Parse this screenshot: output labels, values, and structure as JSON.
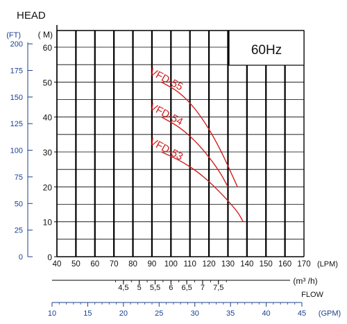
{
  "chart_data": {
    "type": "line",
    "title": "HEAD",
    "legend_box_label": "60Hz",
    "axes": {
      "y_m": {
        "unit": "( M)",
        "ylim": [
          0,
          65
        ],
        "ticks": [
          0,
          10,
          20,
          30,
          40,
          50,
          60
        ],
        "tick_labels": [
          "0",
          "10",
          "20",
          "30",
          "40",
          "50",
          "60"
        ]
      },
      "y_ft": {
        "unit": "(FT)",
        "ticks": [
          0,
          25,
          50,
          75,
          100,
          125,
          150,
          175,
          200
        ],
        "tick_labels": [
          "0",
          "25",
          "50",
          "75",
          "100",
          "125",
          "150",
          "175",
          "200"
        ],
        "color": "#1a3f8f"
      },
      "x_lpm": {
        "unit": "(LPM)",
        "xlim": [
          40,
          170
        ],
        "ticks": [
          40,
          50,
          60,
          70,
          80,
          90,
          100,
          110,
          120,
          130,
          140,
          150,
          160,
          170
        ],
        "tick_labels": [
          "40",
          "50",
          "60",
          "70",
          "80",
          "90",
          "100",
          "110",
          "120",
          "130",
          "140",
          "150",
          "160",
          "170"
        ]
      },
      "x_m3h": {
        "unit": "(m³ /h)",
        "ticks": [
          4.5,
          5,
          5.5,
          6,
          6.5,
          7,
          7.5
        ],
        "tick_labels": [
          "4,5",
          "5",
          "5,5",
          "6",
          "6,5",
          "7",
          "7,5"
        ]
      },
      "x_gpm": {
        "unit": "(GPM)",
        "ticks": [
          10,
          15,
          20,
          25,
          30,
          35,
          40,
          45
        ],
        "tick_labels": [
          "10",
          "15",
          "20",
          "25",
          "30",
          "35",
          "40",
          "45"
        ],
        "color": "#1a3f8f"
      },
      "flow_label": "FLOW"
    },
    "grid": true,
    "series_color": "#d02020",
    "series": [
      {
        "name": "VFD-55",
        "x": [
          95,
          105,
          115,
          125,
          135
        ],
        "y": [
          50,
          47,
          41,
          32,
          20
        ]
      },
      {
        "name": "VFD-54",
        "x": [
          95,
          105,
          115,
          125,
          130
        ],
        "y": [
          40,
          37,
          32,
          25,
          20
        ]
      },
      {
        "name": "VFD-53",
        "x": [
          95,
          105,
          115,
          125,
          135,
          138
        ],
        "y": [
          30,
          27.5,
          24,
          19,
          13,
          10
        ]
      }
    ]
  }
}
